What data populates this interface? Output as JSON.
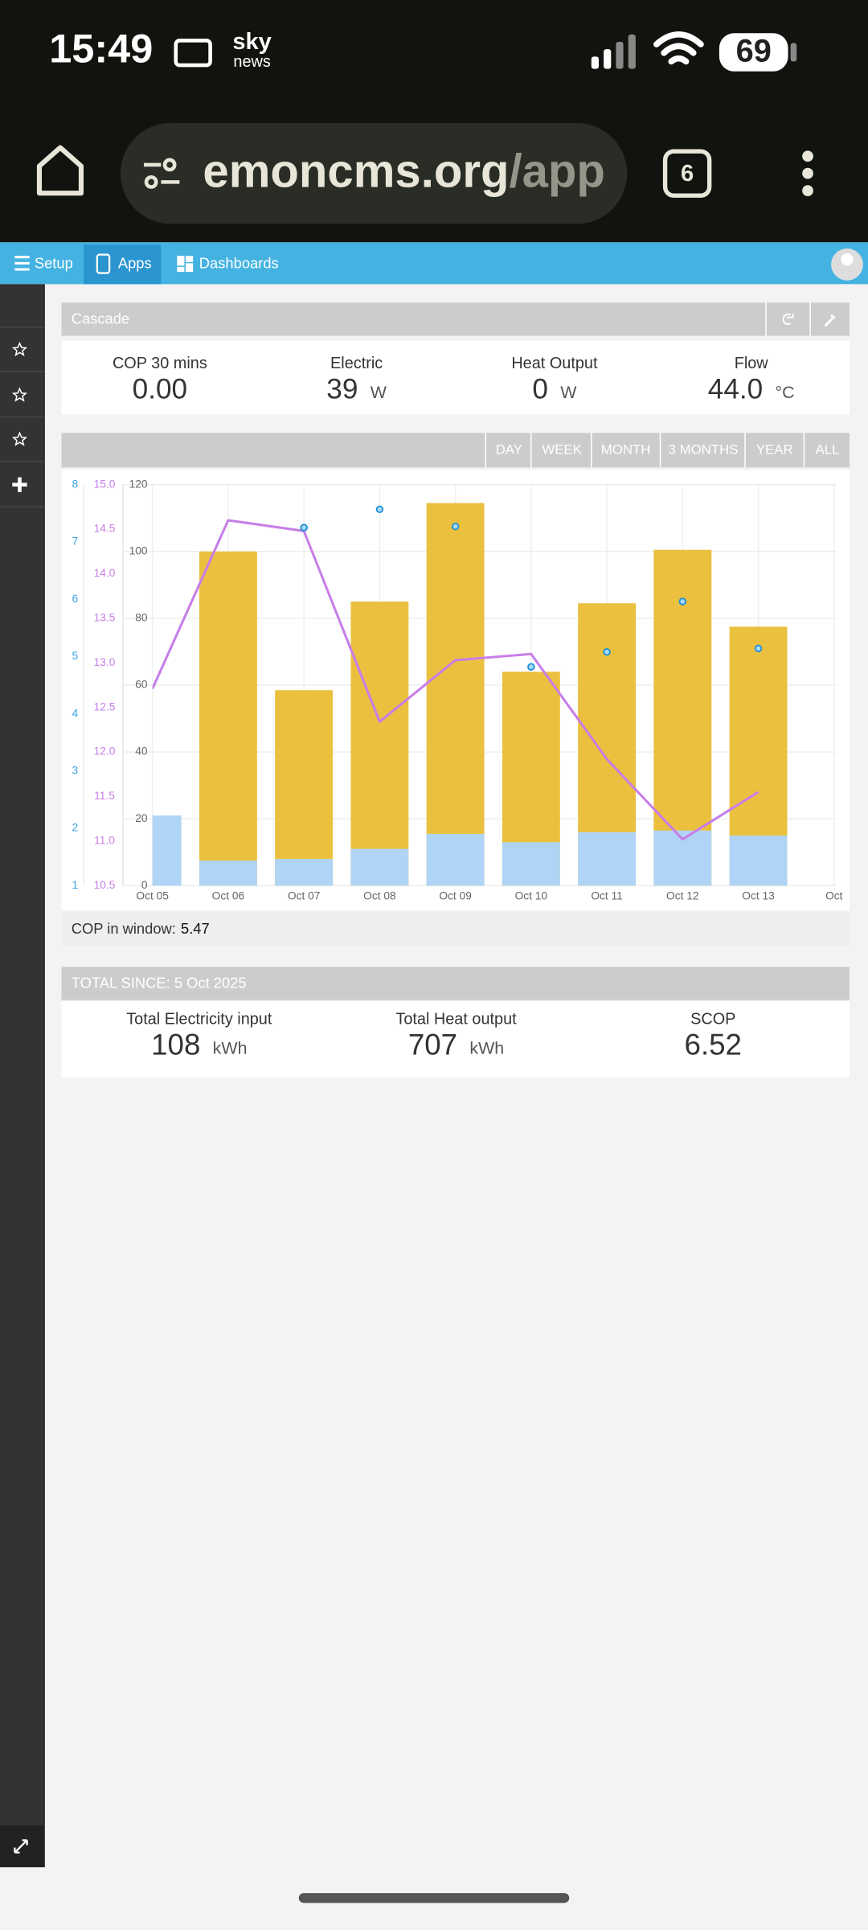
{
  "status_bar": {
    "time": "15:49",
    "app_top": "sky",
    "app_bottom": "news",
    "battery": "69"
  },
  "browser": {
    "url_host": "emoncms.org",
    "url_path": "/app",
    "tabs": "6"
  },
  "nav": [
    "Setup",
    "Apps",
    "Dashboards"
  ],
  "app": {
    "title": "Cascade",
    "stats": [
      {
        "label": "COP 30 mins",
        "value": "0.00"
      },
      {
        "label": "Electric",
        "value": "39",
        "unit": "W"
      },
      {
        "label": "Heat Output",
        "value": "0",
        "unit": "W"
      },
      {
        "label": "Flow",
        "value": "44.0",
        "unit": "°C"
      }
    ],
    "ranges": [
      "DAY",
      "WEEK",
      "MONTH",
      "3 MONTHS",
      "YEAR",
      "ALL"
    ],
    "cop_window": {
      "label": "COP in window:",
      "value": "5.47"
    },
    "totals": {
      "title": "TOTAL SINCE: 5 Oct 2025",
      "items": [
        {
          "label": "Total Electricity input",
          "value": "108",
          "unit": "kWh"
        },
        {
          "label": "Total Heat output",
          "value": "707",
          "unit": "kWh"
        },
        {
          "label": "SCOP",
          "value": "6.52"
        }
      ]
    }
  },
  "chart_data": {
    "type": "bar",
    "categories": [
      "Oct 05",
      "Oct 06",
      "Oct 07",
      "Oct 08",
      "Oct 09",
      "Oct 10",
      "Oct 11",
      "Oct 12",
      "Oct 13",
      "Oct"
    ],
    "series": [
      {
        "type": "bar",
        "color": "#ebc03f",
        "values": [
          null,
          100,
          58.5,
          85,
          114.5,
          64,
          84.5,
          100.5,
          77.5,
          null
        ]
      },
      {
        "type": "bar",
        "color": "#b0d4f5",
        "values": [
          21,
          7.5,
          8,
          11,
          15.5,
          13,
          16,
          16.5,
          15,
          null
        ]
      },
      {
        "type": "line",
        "axis": "y2",
        "color": "#c77ee8",
        "values": [
          12.71,
          14.6,
          14.48,
          12.34,
          13.03,
          13.1,
          11.92,
          11.02,
          11.55,
          null
        ]
      },
      {
        "type": "scatter",
        "axis": "y3",
        "color": "#1f8fd6",
        "values": [
          null,
          null,
          7.25,
          7.57,
          7.27,
          4.82,
          5.08,
          5.96,
          5.14,
          null
        ]
      }
    ],
    "ylim": [
      0,
      120
    ],
    "yticks": [
      0,
      20,
      40,
      60,
      80,
      100,
      120
    ],
    "y2lim": [
      10.5,
      15
    ],
    "y2ticks": [
      10.5,
      {
        "value": 11,
        "label": "11.0"
      },
      11.5,
      {
        "value": 12,
        "label": "12.0"
      },
      12.5,
      {
        "value": 13,
        "label": "13.0"
      },
      13.5,
      {
        "value": 14,
        "label": "14.0"
      },
      14.5,
      {
        "value": 15,
        "label": "15.0"
      }
    ],
    "y3lim": [
      1,
      8
    ],
    "y3ticks": [
      1,
      2,
      3,
      4,
      5,
      6,
      7,
      8
    ],
    "grid": true
  }
}
